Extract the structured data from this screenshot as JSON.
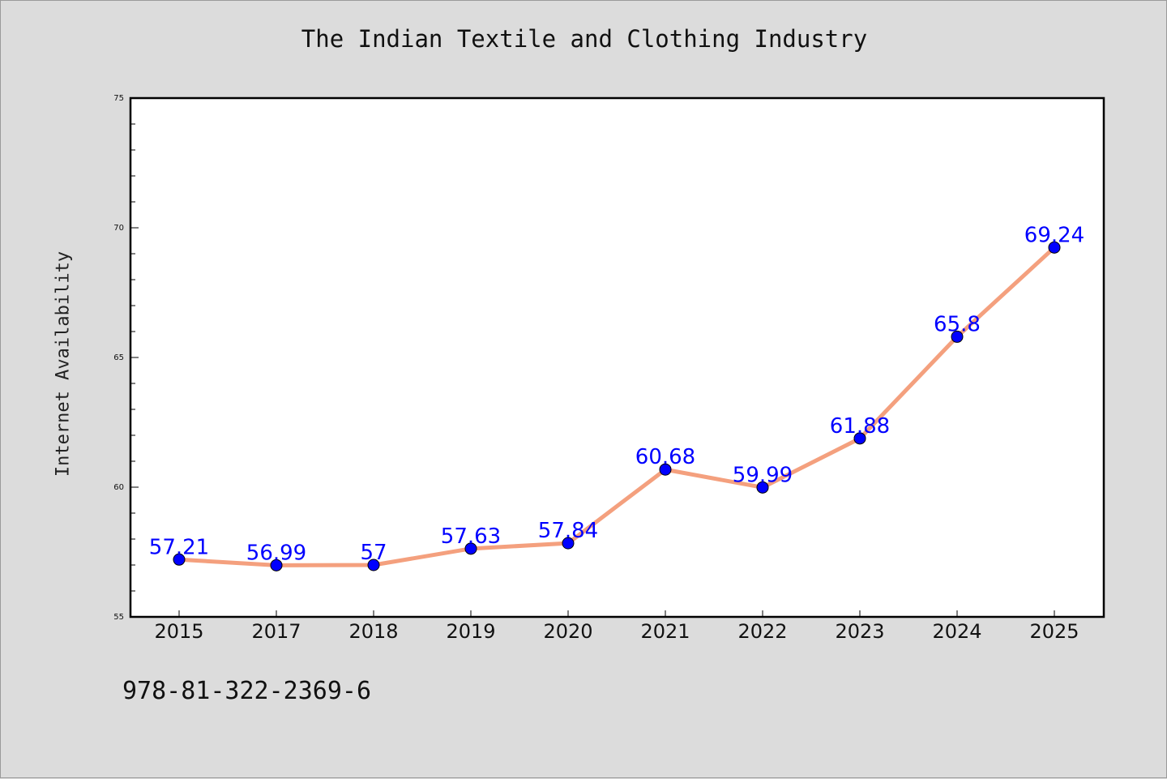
{
  "chart_data": {
    "type": "line",
    "title": "The Indian Textile and Clothing Industry",
    "xlabel": "",
    "ylabel": "Internet Availability",
    "categories": [
      "2015",
      "2017",
      "2018",
      "2019",
      "2020",
      "2021",
      "2022",
      "2023",
      "2024",
      "2025"
    ],
    "series": [
      {
        "values": [
          57.21,
          56.99,
          57,
          57.63,
          57.84,
          60.68,
          59.99,
          61.88,
          65.8,
          69.24
        ],
        "labels": [
          "57.21",
          "56.99",
          "57",
          "57.63",
          "57.84",
          "60.68",
          "59.99",
          "61.88",
          "65.8",
          "69.24"
        ],
        "line_color": "#f4a07e",
        "marker_color": "#0000ff"
      }
    ],
    "ylim": [
      55,
      75
    ],
    "yticks": [
      "55",
      "60",
      "65",
      "70",
      "75"
    ],
    "grid": false,
    "legend": "none"
  },
  "footer": {
    "isbn": "978-81-322-2369-6"
  }
}
